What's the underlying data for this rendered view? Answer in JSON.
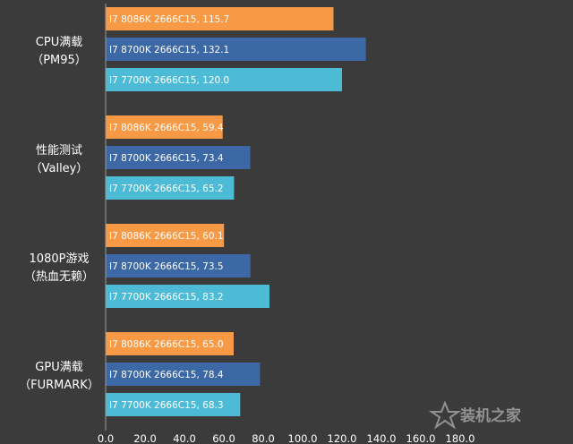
{
  "watermark": {
    "text": "装机之家",
    "icon": "star-icon"
  },
  "chart_data": {
    "type": "bar",
    "orientation": "horizontal",
    "categories": [
      [
        "CPU满载",
        "（PM95）"
      ],
      [
        "性能测试",
        "（Valley）"
      ],
      [
        "1080P游戏",
        "（热血无赖）"
      ],
      [
        "GPU满载",
        "（FURMARK）"
      ]
    ],
    "series": [
      {
        "color": "#f89a45",
        "labels": [
          "I7 8086K 2666C15, 115.7",
          "I7 8086K 2666C15, 59.4",
          "I7 8086K 2666C15, 60.1",
          "I7 8086K 2666C15, 65.0"
        ],
        "values": [
          115.7,
          59.4,
          60.1,
          65.0
        ]
      },
      {
        "color": "#3c68a6",
        "labels": [
          "I7 8700K 2666C15, 132.1",
          "I7 8700K 2666C15, 73.4",
          "I7 8700K 2666C15, 73.5",
          "I7 8700K 2666C15, 78.4"
        ],
        "values": [
          132.1,
          73.4,
          73.5,
          78.4
        ]
      },
      {
        "color": "#4dbad6",
        "labels": [
          "I7 7700K 2666C15, 120.0",
          "I7 7700K 2666C15, 65.2",
          "I7 7700K 2666C15, 83.2",
          "I7 7700K 2666C15, 68.3"
        ],
        "values": [
          120.0,
          65.2,
          83.2,
          68.3
        ]
      }
    ],
    "xlim": [
      0,
      180
    ],
    "xticks": [
      "0.0",
      "20.0",
      "40.0",
      "60.0",
      "80.0",
      "100.0",
      "120.0",
      "140.0",
      "160.0",
      "180.0"
    ],
    "grid": false,
    "legend": "none"
  }
}
